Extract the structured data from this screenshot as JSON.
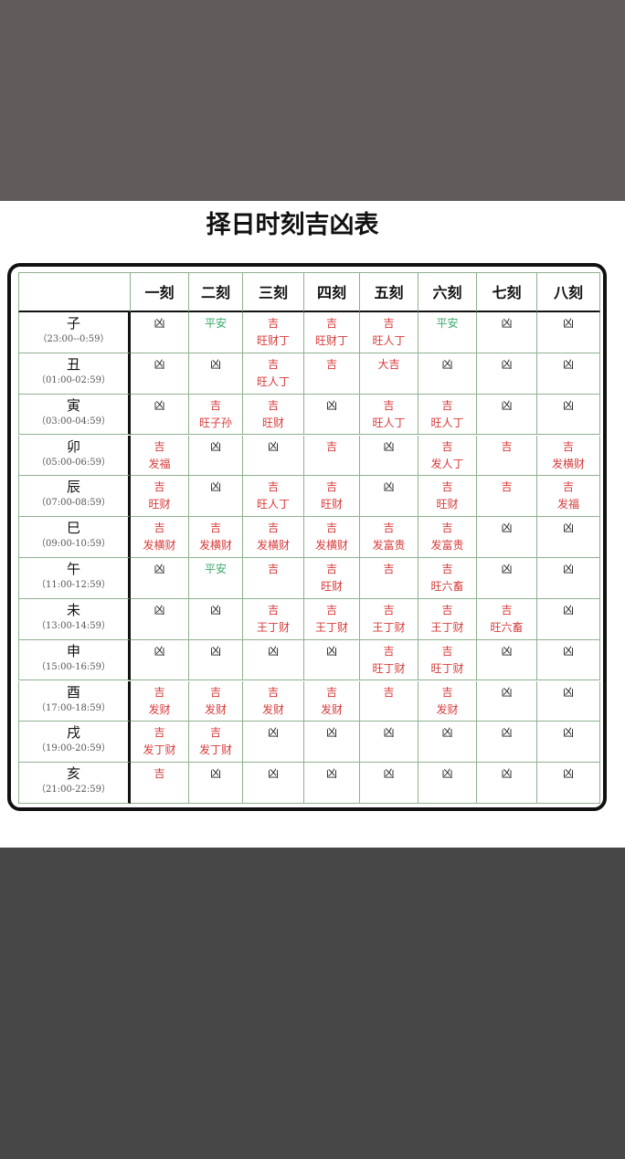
{
  "title": "择日时刻吉凶表",
  "table": {
    "header": [
      "",
      "一刻",
      "二刻",
      "三刻",
      "四刻",
      "五刻",
      "六刻",
      "七刻",
      "八刻"
    ],
    "rows": [
      {
        "branch": "子",
        "time": "（23:00--0:59）",
        "cells": [
          {
            "text": [
              "凶"
            ],
            "color": "#222222"
          },
          {
            "text": [
              "平安"
            ],
            "color": "#3aa86a"
          },
          {
            "text": [
              "吉",
              "旺财丁"
            ],
            "color": "#d83a3a"
          },
          {
            "text": [
              "吉",
              "旺财丁"
            ],
            "color": "#d83a3a"
          },
          {
            "text": [
              "吉",
              "旺人丁"
            ],
            "color": "#d83a3a"
          },
          {
            "text": [
              "平安"
            ],
            "color": "#3aa86a"
          },
          {
            "text": [
              "凶"
            ],
            "color": "#222222"
          },
          {
            "text": [
              "凶"
            ],
            "color": "#222222"
          }
        ]
      },
      {
        "branch": "丑",
        "time": "（01:00-02:59）",
        "cells": [
          {
            "text": [
              "凶"
            ],
            "color": "#222222"
          },
          {
            "text": [
              "凶"
            ],
            "color": "#222222"
          },
          {
            "text": [
              "吉",
              "旺人丁"
            ],
            "color": "#d83a3a"
          },
          {
            "text": [
              "吉"
            ],
            "color": "#d83a3a"
          },
          {
            "text": [
              "大吉"
            ],
            "color": "#d83a3a"
          },
          {
            "text": [
              "凶"
            ],
            "color": "#222222"
          },
          {
            "text": [
              "凶"
            ],
            "color": "#222222"
          },
          {
            "text": [
              "凶"
            ],
            "color": "#222222"
          }
        ]
      },
      {
        "branch": "寅",
        "time": "（03:00-04:59）",
        "cells": [
          {
            "text": [
              "凶"
            ],
            "color": "#222222"
          },
          {
            "text": [
              "吉",
              "旺子孙"
            ],
            "color": "#d83a3a"
          },
          {
            "text": [
              "吉",
              "旺财"
            ],
            "color": "#d83a3a"
          },
          {
            "text": [
              "凶"
            ],
            "color": "#222222"
          },
          {
            "text": [
              "吉",
              "旺人丁"
            ],
            "color": "#d83a3a"
          },
          {
            "text": [
              "吉",
              "旺人丁"
            ],
            "color": "#d83a3a"
          },
          {
            "text": [
              "凶"
            ],
            "color": "#222222"
          },
          {
            "text": [
              "凶"
            ],
            "color": "#222222"
          }
        ]
      },
      {
        "branch": "卯",
        "time": "（05:00-06:59）",
        "cells": [
          {
            "text": [
              "吉",
              "发福"
            ],
            "color": "#d83a3a"
          },
          {
            "text": [
              "凶"
            ],
            "color": "#222222"
          },
          {
            "text": [
              "凶"
            ],
            "color": "#222222"
          },
          {
            "text": [
              "吉"
            ],
            "color": "#d83a3a"
          },
          {
            "text": [
              "凶"
            ],
            "color": "#222222"
          },
          {
            "text": [
              "吉",
              "发人丁"
            ],
            "color": "#d83a3a"
          },
          {
            "text": [
              "吉"
            ],
            "color": "#d83a3a"
          },
          {
            "text": [
              "吉",
              "发横财"
            ],
            "color": "#d83a3a"
          }
        ]
      },
      {
        "branch": "辰",
        "time": "（07:00-08:59）",
        "cells": [
          {
            "text": [
              "吉",
              "旺财"
            ],
            "color": "#d83a3a"
          },
          {
            "text": [
              "凶"
            ],
            "color": "#222222"
          },
          {
            "text": [
              "吉",
              "旺人丁"
            ],
            "color": "#d83a3a"
          },
          {
            "text": [
              "吉",
              "旺财"
            ],
            "color": "#d83a3a"
          },
          {
            "text": [
              "凶"
            ],
            "color": "#222222"
          },
          {
            "text": [
              "吉",
              "旺财"
            ],
            "color": "#d83a3a"
          },
          {
            "text": [
              "吉"
            ],
            "color": "#d83a3a"
          },
          {
            "text": [
              "吉",
              "发福"
            ],
            "color": "#d83a3a"
          }
        ]
      },
      {
        "branch": "巳",
        "time": "（09:00-10:59）",
        "cells": [
          {
            "text": [
              "吉",
              "发横财"
            ],
            "color": "#d83a3a"
          },
          {
            "text": [
              "吉",
              "发横财"
            ],
            "color": "#d83a3a"
          },
          {
            "text": [
              "吉",
              "发横财"
            ],
            "color": "#d83a3a"
          },
          {
            "text": [
              "吉",
              "发横财"
            ],
            "color": "#d83a3a"
          },
          {
            "text": [
              "吉",
              "发富贵"
            ],
            "color": "#d83a3a"
          },
          {
            "text": [
              "吉",
              "发富贵"
            ],
            "color": "#d83a3a"
          },
          {
            "text": [
              "凶"
            ],
            "color": "#222222"
          },
          {
            "text": [
              "凶"
            ],
            "color": "#222222"
          }
        ]
      },
      {
        "branch": "午",
        "time": "（11:00-12:59）",
        "cells": [
          {
            "text": [
              "凶"
            ],
            "color": "#222222"
          },
          {
            "text": [
              "平安"
            ],
            "color": "#3aa86a"
          },
          {
            "text": [
              "吉"
            ],
            "color": "#d83a3a"
          },
          {
            "text": [
              "吉",
              "旺财"
            ],
            "color": "#d83a3a"
          },
          {
            "text": [
              "吉"
            ],
            "color": "#d83a3a"
          },
          {
            "text": [
              "吉",
              "旺六畜"
            ],
            "color": "#d83a3a"
          },
          {
            "text": [
              "凶"
            ],
            "color": "#222222"
          },
          {
            "text": [
              "凶"
            ],
            "color": "#222222"
          }
        ]
      },
      {
        "branch": "未",
        "time": "（13:00-14:59）",
        "cells": [
          {
            "text": [
              "凶"
            ],
            "color": "#222222"
          },
          {
            "text": [
              "凶"
            ],
            "color": "#222222"
          },
          {
            "text": [
              "吉",
              "王丁财"
            ],
            "color": "#d83a3a"
          },
          {
            "text": [
              "吉",
              "王丁财"
            ],
            "color": "#d83a3a"
          },
          {
            "text": [
              "吉",
              "王丁财"
            ],
            "color": "#d83a3a"
          },
          {
            "text": [
              "吉",
              "王丁财"
            ],
            "color": "#d83a3a"
          },
          {
            "text": [
              "吉",
              "旺六畜"
            ],
            "color": "#d83a3a"
          },
          {
            "text": [
              "凶"
            ],
            "color": "#222222"
          }
        ]
      },
      {
        "branch": "申",
        "time": "（15:00-16:59）",
        "cells": [
          {
            "text": [
              "凶"
            ],
            "color": "#222222"
          },
          {
            "text": [
              "凶"
            ],
            "color": "#222222"
          },
          {
            "text": [
              "凶"
            ],
            "color": "#222222"
          },
          {
            "text": [
              "凶"
            ],
            "color": "#222222"
          },
          {
            "text": [
              "吉",
              "旺丁财"
            ],
            "color": "#d83a3a"
          },
          {
            "text": [
              "吉",
              "旺丁财"
            ],
            "color": "#d83a3a"
          },
          {
            "text": [
              "凶"
            ],
            "color": "#222222"
          },
          {
            "text": [
              "凶"
            ],
            "color": "#222222"
          }
        ]
      },
      {
        "branch": "酉",
        "time": "（17:00-18:59）",
        "cells": [
          {
            "text": [
              "吉",
              "发财"
            ],
            "color": "#d83a3a"
          },
          {
            "text": [
              "吉",
              "发财"
            ],
            "color": "#d83a3a"
          },
          {
            "text": [
              "吉",
              "发财"
            ],
            "color": "#d83a3a"
          },
          {
            "text": [
              "吉",
              "发财"
            ],
            "color": "#d83a3a"
          },
          {
            "text": [
              "吉"
            ],
            "color": "#d83a3a"
          },
          {
            "text": [
              "吉",
              "发财"
            ],
            "color": "#d83a3a"
          },
          {
            "text": [
              "凶"
            ],
            "color": "#222222"
          },
          {
            "text": [
              "凶"
            ],
            "color": "#222222"
          }
        ]
      },
      {
        "branch": "戌",
        "time": "（19:00-20:59）",
        "cells": [
          {
            "text": [
              "吉",
              "发丁财"
            ],
            "color": "#d83a3a"
          },
          {
            "text": [
              "吉",
              "发丁财"
            ],
            "color": "#d83a3a"
          },
          {
            "text": [
              "凶"
            ],
            "color": "#222222"
          },
          {
            "text": [
              "凶"
            ],
            "color": "#222222"
          },
          {
            "text": [
              "凶"
            ],
            "color": "#222222"
          },
          {
            "text": [
              "凶"
            ],
            "color": "#222222"
          },
          {
            "text": [
              "凶"
            ],
            "color": "#222222"
          },
          {
            "text": [
              "凶"
            ],
            "color": "#222222"
          }
        ]
      },
      {
        "branch": "亥",
        "time": "（21:00-22:59）",
        "cells": [
          {
            "text": [
              "吉"
            ],
            "color": "#d83a3a"
          },
          {
            "text": [
              "凶"
            ],
            "color": "#222222"
          },
          {
            "text": [
              "凶"
            ],
            "color": "#222222"
          },
          {
            "text": [
              "凶"
            ],
            "color": "#222222"
          },
          {
            "text": [
              "凶"
            ],
            "color": "#222222"
          },
          {
            "text": [
              "凶"
            ],
            "color": "#222222"
          },
          {
            "text": [
              "凶"
            ],
            "color": "#222222"
          },
          {
            "text": [
              "凶"
            ],
            "color": "#222222"
          }
        ]
      }
    ]
  }
}
